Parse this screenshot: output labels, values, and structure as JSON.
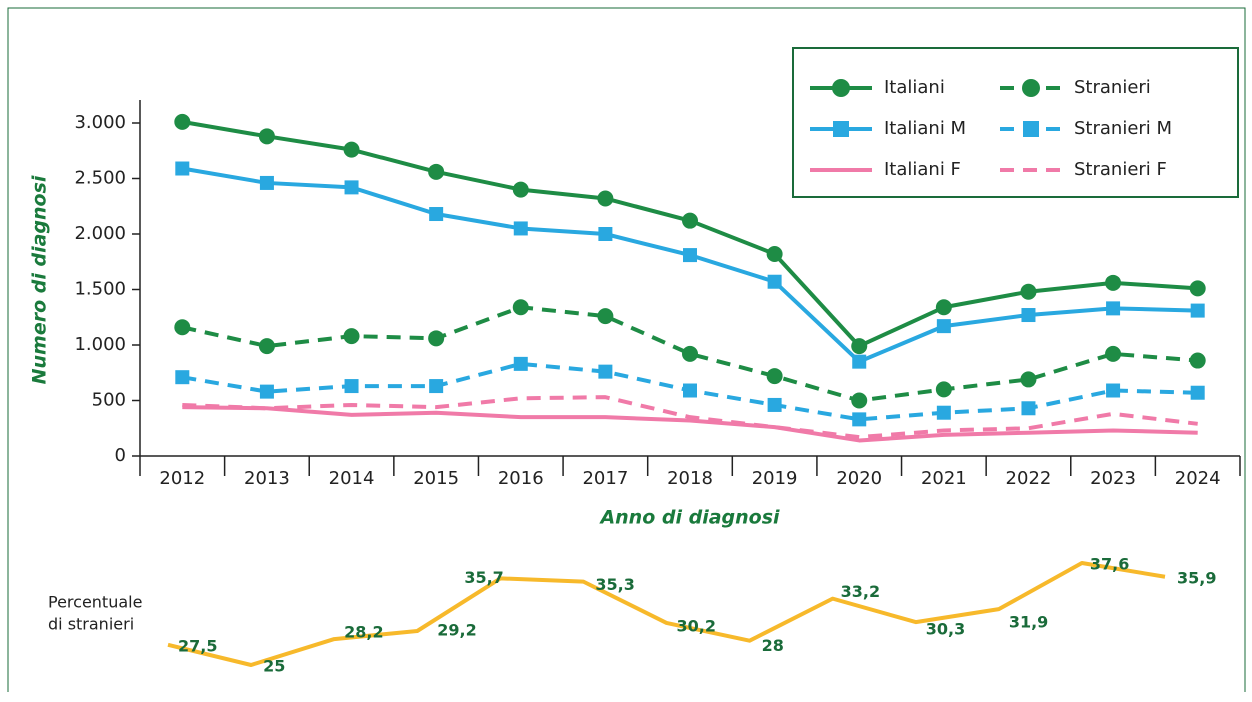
{
  "chart_data": [
    {
      "type": "line",
      "y_label": "Numero di diagnosi",
      "x_label": "Anno di diagnosi",
      "categories": [
        "2012",
        "2013",
        "2014",
        "2015",
        "2016",
        "2017",
        "2018",
        "2019",
        "2020",
        "2021",
        "2022",
        "2023",
        "2024"
      ],
      "ylim": [
        0,
        3000
      ],
      "yticks": [
        0,
        500,
        {
          "value": 1000,
          "label": "1.000"
        },
        {
          "value": 1500,
          "label": "1.500"
        },
        {
          "value": 2000,
          "label": "2.000"
        },
        {
          "value": 2500,
          "label": "2.500"
        },
        {
          "value": 3000,
          "label": "3.000"
        }
      ],
      "series": [
        {
          "name": "Italiani",
          "color": "#1e8c45",
          "marker": "circle",
          "dashed": false,
          "values": [
            3010,
            2880,
            2760,
            2560,
            2400,
            2320,
            2120,
            1820,
            990,
            1340,
            1480,
            1560,
            1510
          ]
        },
        {
          "name": "Stranieri",
          "color": "#1e8c45",
          "marker": "circle",
          "dashed": true,
          "values": [
            1160,
            990,
            1080,
            1060,
            1340,
            1260,
            920,
            720,
            500,
            600,
            690,
            920,
            860
          ]
        },
        {
          "name": "Italiani M",
          "color": "#29a8e0",
          "marker": "square",
          "dashed": false,
          "values": [
            2590,
            2460,
            2420,
            2180,
            2050,
            2000,
            1810,
            1570,
            850,
            1170,
            1270,
            1330,
            1310
          ]
        },
        {
          "name": "Stranieri M",
          "color": "#29a8e0",
          "marker": "square",
          "dashed": true,
          "values": [
            710,
            580,
            630,
            630,
            830,
            760,
            590,
            460,
            330,
            390,
            430,
            590,
            570
          ]
        },
        {
          "name": "Italiani F",
          "color": "#f07aa8",
          "dashed": false,
          "values": [
            440,
            430,
            370,
            390,
            350,
            350,
            320,
            260,
            140,
            190,
            210,
            230,
            210
          ]
        },
        {
          "name": "Stranieri F",
          "color": "#f07aa8",
          "dashed": true,
          "values": [
            460,
            430,
            460,
            440,
            520,
            530,
            350,
            260,
            170,
            230,
            250,
            380,
            290
          ]
        }
      ]
    },
    {
      "type": "line",
      "label": [
        "Percentuale",
        "di stranieri"
      ],
      "color": "#f7b92b",
      "values": [
        27.5,
        25,
        28.2,
        29.2,
        35.7,
        35.3,
        30.2,
        28,
        33.2,
        30.3,
        31.9,
        37.6,
        35.9
      ],
      "value_labels": [
        "27,5",
        "25",
        "28,2",
        "29,2",
        "35,7",
        "35,3",
        "30,2",
        "28",
        "33,2",
        "30,3",
        "31,9",
        "37,6",
        "35,9"
      ]
    }
  ]
}
